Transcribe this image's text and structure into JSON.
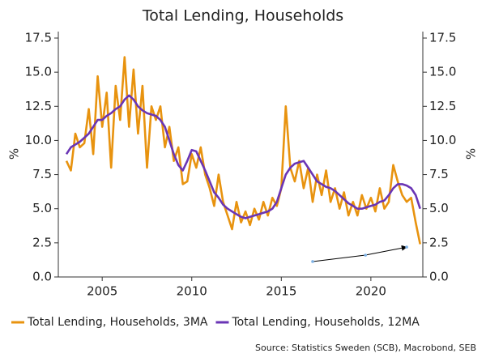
{
  "chart_data": {
    "type": "line",
    "title": "Total Lending, Households",
    "ylabel": "%",
    "y2label": "%",
    "source": "Source: Statistics Sweden (SCB), Macrobond, SEB",
    "x": [
      2003,
      2003.25,
      2003.5,
      2003.75,
      2004,
      2004.25,
      2004.5,
      2004.75,
      2005,
      2005.25,
      2005.5,
      2005.75,
      2006,
      2006.25,
      2006.5,
      2006.75,
      2007,
      2007.25,
      2007.5,
      2007.75,
      2008,
      2008.25,
      2008.5,
      2008.75,
      2009,
      2009.25,
      2009.5,
      2009.75,
      2010,
      2010.25,
      2010.5,
      2010.75,
      2011,
      2011.25,
      2011.5,
      2011.75,
      2012,
      2012.25,
      2012.5,
      2012.75,
      2013,
      2013.25,
      2013.5,
      2013.75,
      2014,
      2014.25,
      2014.5,
      2014.75,
      2015,
      2015.25,
      2015.5,
      2015.75,
      2016,
      2016.25,
      2016.5,
      2016.75,
      2017,
      2017.25,
      2017.5,
      2017.75,
      2018,
      2018.25,
      2018.5,
      2018.75,
      2019,
      2019.25,
      2019.5,
      2019.75,
      2020,
      2020.25,
      2020.5,
      2020.75,
      2021,
      2021.25,
      2021.5,
      2021.75,
      2022,
      2022.25,
      2022.5,
      2022.75
    ],
    "series": [
      {
        "name": "Total Lending, Households, 3MA",
        "color": "#e8930f",
        "values": [
          8.5,
          7.8,
          10.5,
          9.5,
          9.8,
          12.3,
          9.0,
          14.7,
          11.0,
          13.5,
          8.0,
          14.0,
          11.5,
          16.1,
          11.0,
          15.2,
          10.5,
          14.0,
          8.0,
          12.5,
          11.5,
          12.5,
          9.5,
          11.0,
          8.5,
          9.5,
          6.8,
          7.0,
          9.0,
          8.0,
          9.5,
          7.5,
          6.5,
          5.2,
          7.5,
          5.5,
          4.5,
          3.5,
          5.5,
          4.0,
          4.8,
          3.8,
          5.0,
          4.2,
          5.5,
          4.5,
          5.8,
          5.2,
          6.5,
          12.5,
          8.0,
          7.0,
          8.5,
          6.5,
          8.0,
          5.5,
          7.5,
          6.0,
          7.8,
          5.5,
          6.5,
          5.0,
          6.2,
          4.5,
          5.5,
          4.5,
          6.0,
          5.0,
          5.8,
          4.8,
          6.5,
          5.0,
          5.5,
          8.2,
          7.0,
          6.0,
          5.5,
          5.8,
          4.0,
          2.4
        ]
      },
      {
        "name": "Total Lending, Households, 12MA",
        "color": "#6a35b5",
        "values": [
          9.0,
          9.5,
          9.7,
          9.9,
          10.2,
          10.5,
          11.0,
          11.5,
          11.5,
          11.8,
          12.0,
          12.3,
          12.5,
          13.0,
          13.3,
          13.0,
          12.5,
          12.2,
          12.0,
          11.9,
          11.8,
          11.5,
          11.0,
          10.0,
          9.0,
          8.2,
          7.8,
          8.5,
          9.3,
          9.2,
          8.5,
          7.8,
          7.0,
          6.2,
          5.8,
          5.3,
          5.0,
          4.8,
          4.6,
          4.4,
          4.3,
          4.4,
          4.5,
          4.6,
          4.7,
          4.8,
          5.0,
          5.5,
          6.5,
          7.5,
          8.0,
          8.3,
          8.4,
          8.5,
          8.0,
          7.5,
          7.0,
          6.8,
          6.6,
          6.5,
          6.3,
          6.0,
          5.7,
          5.4,
          5.2,
          5.0,
          5.0,
          5.1,
          5.2,
          5.3,
          5.5,
          5.6,
          6.0,
          6.5,
          6.8,
          6.8,
          6.7,
          6.5,
          6.0,
          5.0
        ]
      }
    ],
    "annotation": {
      "x": [
        2016.75,
        2019.7,
        2022.0
      ],
      "y": [
        1.13,
        1.6,
        2.19
      ],
      "color": "#000000"
    },
    "xlim": [
      2002.55,
      2022.9
    ],
    "xticks": [
      2005,
      2010,
      2015,
      2020
    ],
    "ylim": [
      0,
      17.5
    ],
    "yticks": [
      {
        "value": 0,
        "label": "0.0"
      },
      {
        "value": 2.5,
        "label": "2.5"
      },
      {
        "value": 5,
        "label": "5.0"
      },
      {
        "value": 7.5,
        "label": "7.5"
      },
      {
        "value": 10,
        "label": "10.0"
      },
      {
        "value": 12.5,
        "label": "12.5"
      },
      {
        "value": 15,
        "label": "15.0"
      },
      {
        "value": 17.5,
        "label": "17.5"
      }
    ],
    "y2lim": [
      0,
      17.5
    ],
    "y2ticks": [
      {
        "value": 0,
        "label": "0.0"
      },
      {
        "value": 2.5,
        "label": "2.5"
      },
      {
        "value": 5,
        "label": "5.0"
      },
      {
        "value": 7.5,
        "label": "7.5"
      },
      {
        "value": 10,
        "label": "10.0"
      },
      {
        "value": 12.5,
        "label": "12.5"
      },
      {
        "value": 15,
        "label": "15.0"
      },
      {
        "value": 17.5,
        "label": "17.5"
      }
    ],
    "legend": "bottom"
  }
}
